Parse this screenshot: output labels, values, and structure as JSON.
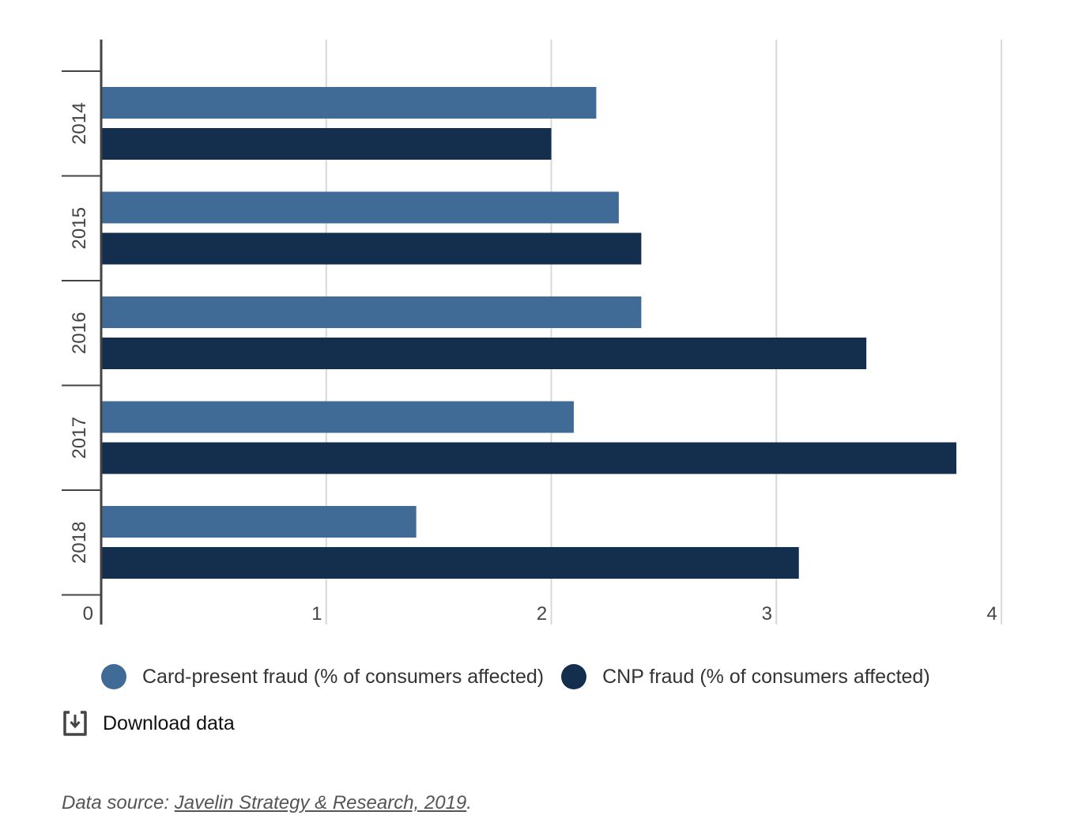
{
  "chart_data": {
    "type": "bar",
    "orientation": "horizontal",
    "categories": [
      "2014",
      "2015",
      "2016",
      "2017",
      "2018"
    ],
    "series": [
      {
        "name": "Card-present fraud (% of consumers affected)",
        "color": "#416b97",
        "values": [
          2.2,
          2.3,
          2.4,
          2.1,
          1.4
        ]
      },
      {
        "name": "CNP fraud (% of consumers affected)",
        "color": "#142e4e",
        "values": [
          2.0,
          2.4,
          3.4,
          3.8,
          3.1
        ]
      }
    ],
    "xlim": [
      0,
      4
    ],
    "xticks": [
      "0",
      "1",
      "2",
      "3",
      "4"
    ],
    "grid": true,
    "legend": "bottom"
  },
  "download": {
    "label": "Download data",
    "icon": "download-icon"
  },
  "source": {
    "prefix": "Data source: ",
    "link": "Javelin Strategy & Research, 2019",
    "suffix": "."
  }
}
